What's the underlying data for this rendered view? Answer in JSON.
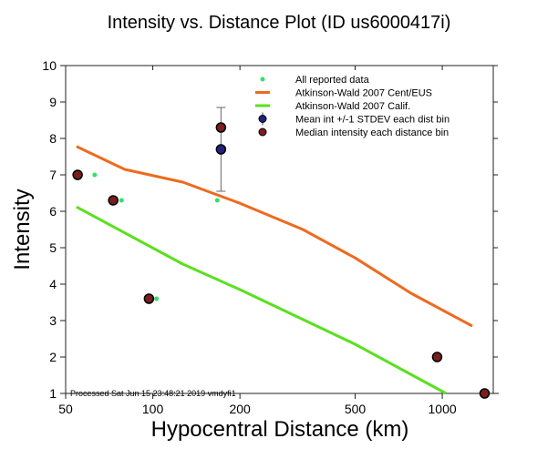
{
  "chart_data": {
    "type": "scatter",
    "title": "Intensity vs. Distance Plot (ID us6000417i)",
    "xlabel": "Hypocentral Distance (km)",
    "ylabel": "Intensity",
    "xscale": "log",
    "xlim": [
      50,
      1500
    ],
    "ylim": [
      1,
      10
    ],
    "xticks": [
      50,
      100,
      200,
      500,
      1000
    ],
    "xtick_labels": [
      "50",
      "100",
      "200",
      "500",
      "1000"
    ],
    "yticks": [
      1,
      2,
      3,
      4,
      5,
      6,
      7,
      8,
      9,
      10
    ],
    "ytick_labels": [
      "1",
      "2",
      "3",
      "4",
      "5",
      "6",
      "7",
      "8",
      "9",
      "10"
    ],
    "grid": false,
    "legend_position": "top-right",
    "footnote": "Processed Sat Jun 15 23:48:21 2019 vmdyfi1",
    "series": [
      {
        "name": "All reported data",
        "kind": "points",
        "color": "#33e066",
        "x": [
          63,
          78,
          103,
          167,
          176,
          940,
          1430
        ],
        "y": [
          7.0,
          6.3,
          3.6,
          6.3,
          8.3,
          2.0,
          1.0
        ]
      },
      {
        "name": "Atkinson-Wald 2007 Cent/EUS",
        "kind": "line",
        "color": "#ee6a1e",
        "x": [
          54.5,
          80,
          127,
          200,
          330,
          500,
          780,
          1270
        ],
        "y": [
          7.78,
          7.15,
          6.8,
          6.22,
          5.5,
          4.72,
          3.75,
          2.85
        ]
      },
      {
        "name": "Atkinson-Wald 2007 Calif.",
        "kind": "line",
        "color": "#5ae01e",
        "x": [
          54.5,
          127,
          200,
          500,
          1030
        ],
        "y": [
          6.12,
          4.55,
          3.85,
          2.35,
          1.0
        ]
      },
      {
        "name": "Mean int +/-1 STDEV each dist bin",
        "kind": "errorbar",
        "color": "#22227a",
        "x": [
          172
        ],
        "y": [
          7.7
        ],
        "ylow": [
          6.55
        ],
        "yhigh": [
          8.85
        ]
      },
      {
        "name": "Median intensity each distance bin",
        "kind": "points",
        "color": "#7a1e1e",
        "x": [
          55,
          73,
          97,
          172,
          960,
          1400
        ],
        "y": [
          7.0,
          6.3,
          3.6,
          8.3,
          2.0,
          1.0
        ]
      }
    ]
  }
}
